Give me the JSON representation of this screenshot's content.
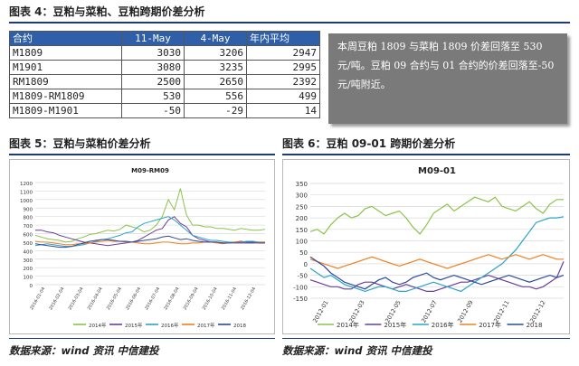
{
  "fig4": {
    "title": "图表 4：豆粕与菜粕、豆粕跨期价差分析",
    "headers": [
      "合约",
      "11-May",
      "4-May",
      "年内平均"
    ],
    "rows": [
      [
        "M1809",
        "3030",
        "3206",
        "2947"
      ],
      [
        "M1901",
        "3080",
        "3235",
        "2995"
      ],
      [
        "RM1809",
        "2500",
        "2650",
        "2392"
      ],
      [
        "M1809-RM1809",
        "530",
        "556",
        "499"
      ],
      [
        "M1809-M1901",
        "-50",
        "-29",
        "14"
      ]
    ],
    "note": "本周豆粕 1809 与菜粕 1809 价差回落至 530 元/吨。豆粕 09 合约与 01 合约的价差回落至-50 元/吨附近。"
  },
  "fig5": {
    "title": "图表 5：豆粕与菜粕价差分析",
    "source": "数据来源：wind 资讯  中信建投"
  },
  "fig6": {
    "title": "图表 6：豆粕 09-01 跨期价差分析",
    "source": "数据来源：wind 资讯  中信建投"
  },
  "colors": {
    "2014": "#8bc34a",
    "2015": "#6a3d9a",
    "2016": "#2aa3c8",
    "2017": "#f07f1e",
    "2018": "#2c4a9a"
  },
  "chart_data": [
    {
      "type": "line",
      "title": "M09-RM09",
      "xlabel": "",
      "ylabel": "",
      "ylim": [
        0,
        1200
      ],
      "yticks": [
        0,
        100,
        200,
        300,
        400,
        500,
        600,
        700,
        800,
        900,
        1000,
        1100,
        1200
      ],
      "xticks": [
        "2016-01-04",
        "2016-02-04",
        "2016-03-04",
        "2016-04-04",
        "2016-05-04",
        "2016-06-04",
        "2016-07-04",
        "2016-08-04",
        "2016-09-04",
        "2016-10-04",
        "2016-11-04",
        "2016-12-04"
      ],
      "legend": "bottom",
      "series": [
        {
          "name": "2014年",
          "color": "#8bc34a",
          "values": [
            580,
            560,
            540,
            530,
            520,
            500,
            510,
            540,
            560,
            590,
            600,
            620,
            640,
            630,
            650,
            700,
            680,
            660,
            620,
            640,
            700,
            800,
            1000,
            880,
            1130,
            820,
            700,
            700,
            680,
            680,
            660,
            660,
            650,
            640,
            660,
            650,
            640,
            640,
            650
          ]
        },
        {
          "name": "2015年",
          "color": "#6a3d9a",
          "values": [
            640,
            640,
            620,
            610,
            580,
            560,
            540,
            520,
            500,
            490,
            480,
            470,
            460,
            470,
            480,
            490,
            500,
            520,
            560,
            600,
            640,
            660,
            760,
            800,
            720,
            680,
            580,
            540,
            520,
            500,
            500,
            490,
            490,
            500,
            510,
            500,
            500,
            490,
            490
          ]
        },
        {
          "name": "2016年",
          "color": "#2aa3c8",
          "values": [
            460,
            470,
            480,
            470,
            460,
            450,
            450,
            460,
            470,
            490,
            510,
            530,
            540,
            560,
            580,
            610,
            620,
            680,
            720,
            740,
            760,
            780,
            800,
            760,
            700,
            640,
            580,
            560,
            540,
            520,
            520,
            510,
            500,
            500,
            500,
            510,
            510,
            500,
            500
          ]
        },
        {
          "name": "2017年",
          "color": "#f07f1e",
          "values": [
            510,
            500,
            500,
            490,
            480,
            470,
            470,
            480,
            480,
            490,
            500,
            510,
            520,
            510,
            510,
            500,
            500,
            490,
            480,
            480,
            490,
            500,
            500,
            490,
            480,
            480,
            490,
            490,
            500,
            500,
            490,
            480,
            490,
            500,
            500,
            490,
            490,
            500,
            500
          ]
        },
        {
          "name": "2018",
          "color": "#2c4a9a",
          "values": [
            480,
            470,
            460,
            450,
            440,
            440,
            450,
            470,
            490,
            510,
            520,
            530,
            530,
            520,
            510,
            510,
            500,
            510,
            520,
            530,
            540,
            560,
            570,
            550,
            530,
            540,
            520,
            510,
            500,
            500,
            500,
            490,
            490,
            490,
            490,
            490,
            490,
            490,
            490
          ]
        }
      ]
    },
    {
      "type": "line",
      "title": "M09-01",
      "xlabel": "",
      "ylabel": "",
      "ylim": [
        -150,
        350
      ],
      "yticks": [
        -150,
        -100,
        -50,
        0,
        50,
        100,
        150,
        200,
        250,
        300,
        350
      ],
      "xticks": [
        "2012-01",
        "2012-03",
        "2012-05",
        "2012-07",
        "2012-09",
        "2012-11",
        "2012-12"
      ],
      "legend": "bottom",
      "series": [
        {
          "name": "2014年",
          "color": "#8bc34a",
          "values": [
            140,
            150,
            130,
            170,
            200,
            220,
            200,
            210,
            240,
            250,
            230,
            210,
            220,
            230,
            200,
            160,
            130,
            170,
            220,
            240,
            260,
            230,
            250,
            270,
            290,
            280,
            270,
            290,
            250,
            240,
            230,
            250,
            270,
            240,
            220,
            260,
            280,
            280
          ]
        },
        {
          "name": "2015年",
          "color": "#6a3d9a",
          "values": [
            -70,
            -80,
            -90,
            -100,
            -100,
            -110,
            -110,
            -90,
            -80,
            -80,
            -90,
            -100,
            -110,
            -100,
            -90,
            -100,
            -110,
            -120,
            -120,
            -110,
            -100,
            -90,
            -80,
            -80,
            -70,
            -60,
            -50,
            -60,
            -70,
            -80,
            -90,
            -100,
            -100,
            -110,
            -100,
            -80,
            -60,
            10
          ]
        },
        {
          "name": "2016年",
          "color": "#2aa3c8",
          "values": [
            -20,
            -40,
            -60,
            -50,
            -70,
            -90,
            -100,
            -110,
            -120,
            -110,
            -100,
            -100,
            -110,
            -120,
            -120,
            -110,
            -100,
            -90,
            -80,
            -90,
            -100,
            -110,
            -120,
            -100,
            -80,
            -60,
            -40,
            -20,
            0,
            30,
            60,
            100,
            140,
            180,
            190,
            200,
            200,
            205
          ]
        },
        {
          "name": "2017年",
          "color": "#f07f1e",
          "values": [
            20,
            10,
            0,
            -10,
            -20,
            -10,
            0,
            10,
            20,
            30,
            20,
            10,
            0,
            -10,
            0,
            10,
            20,
            10,
            0,
            -10,
            -20,
            -10,
            0,
            10,
            20,
            30,
            40,
            30,
            20,
            30,
            40,
            30,
            20,
            30,
            40,
            30,
            20,
            20
          ]
        },
        {
          "name": "2018",
          "color": "#2c4a9a",
          "values": [
            30,
            10,
            -10,
            -40,
            -60,
            -80,
            -90,
            -100,
            -110,
            -90,
            -70,
            -60,
            -80,
            -90,
            -80,
            -60,
            -50,
            -40,
            -60,
            -70,
            -60,
            -50,
            -60,
            -70,
            -80,
            -90,
            -80,
            -70,
            -60,
            -50,
            -60,
            -70,
            -80,
            -70,
            -60,
            -50,
            -60,
            -50
          ]
        }
      ]
    }
  ]
}
